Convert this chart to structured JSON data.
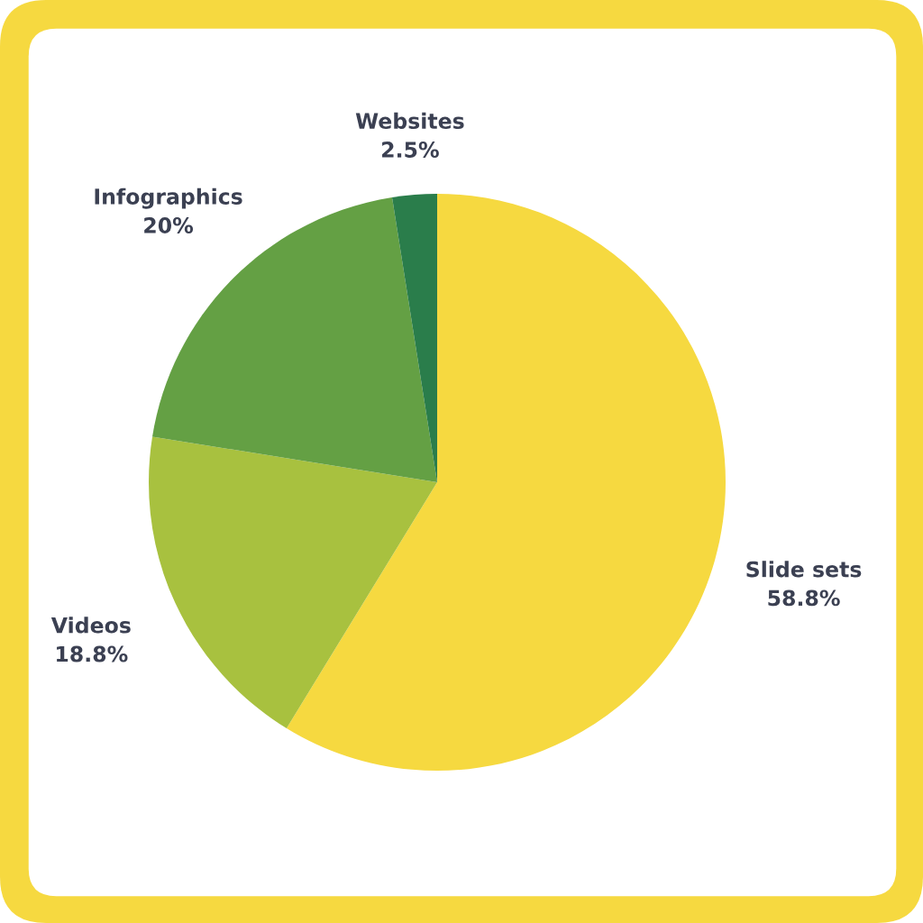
{
  "chart_data": {
    "type": "pie",
    "categories": [
      "Slide sets",
      "Videos",
      "Infographics",
      "Websites"
    ],
    "values": [
      58.8,
      18.8,
      20,
      2.5
    ],
    "colors": [
      "#f6d940",
      "#a8c13f",
      "#64a044",
      "#2a7d4b"
    ],
    "value_labels": [
      "58.8%",
      "18.8%",
      "20%",
      "2.5%"
    ],
    "legend": false
  }
}
